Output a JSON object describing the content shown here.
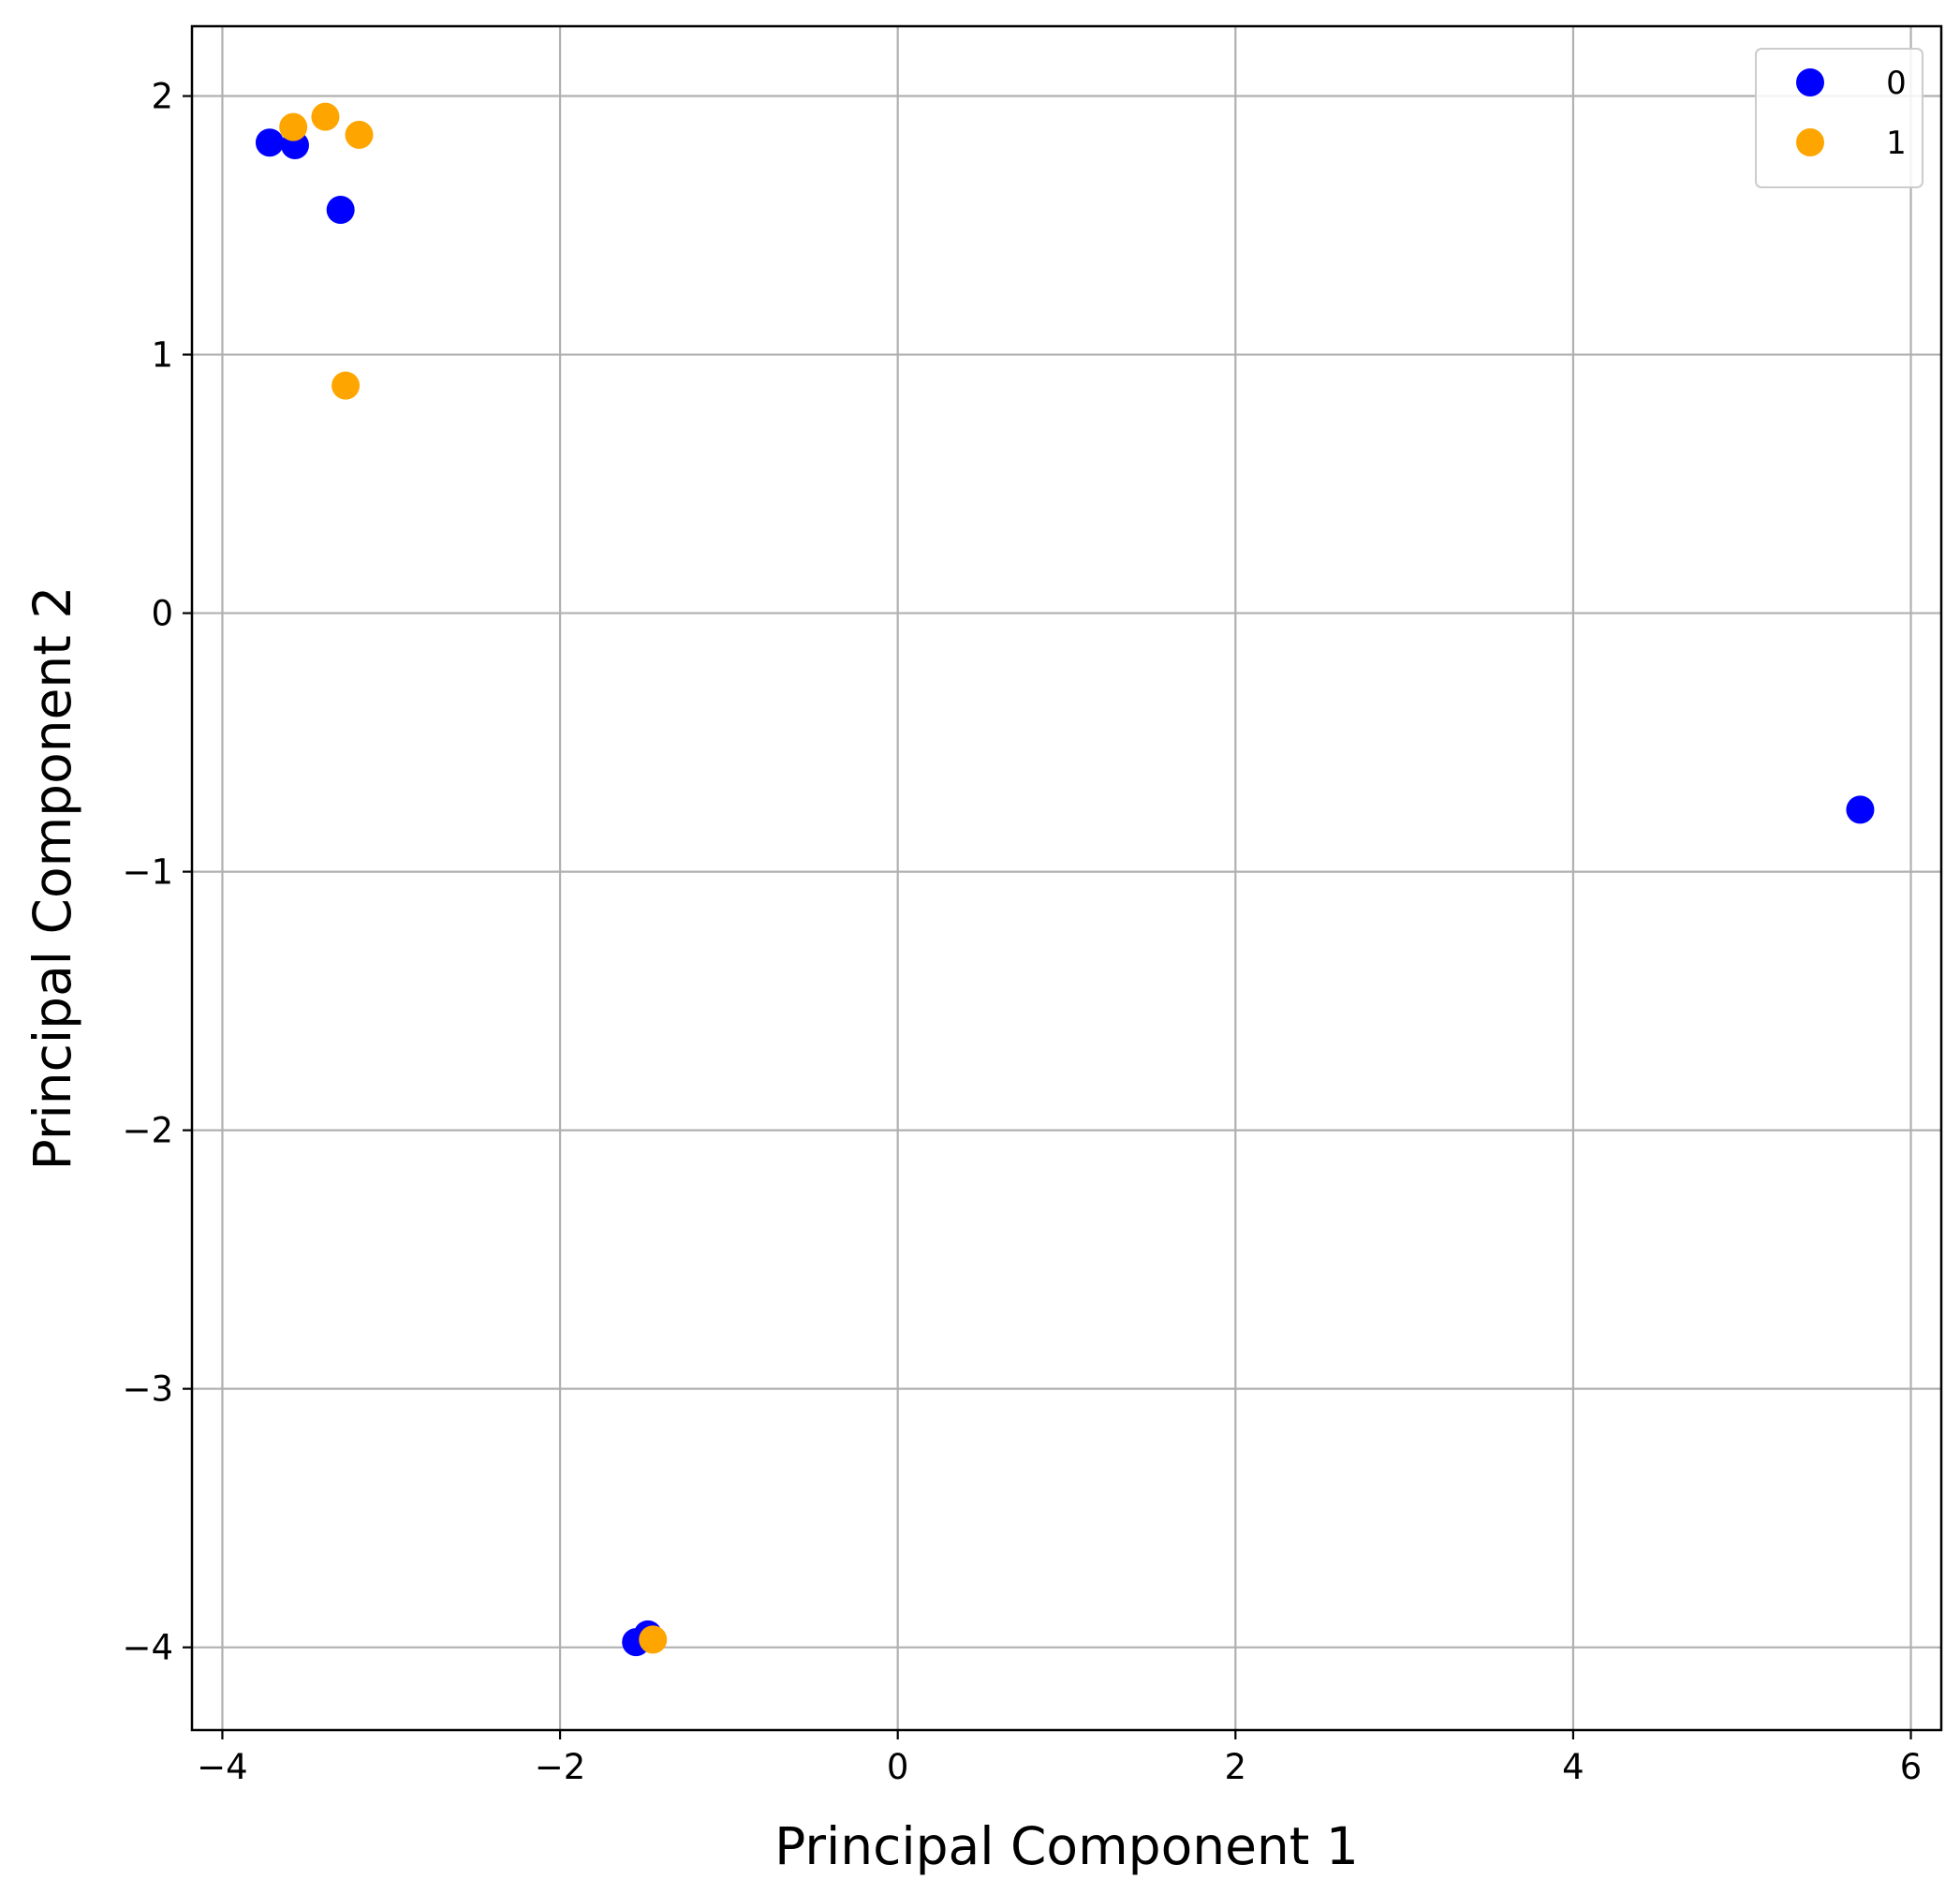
{
  "chart_data": {
    "type": "scatter",
    "title": "",
    "xlabel": "Principal Component 1",
    "ylabel": "Principal Component 2",
    "xlim": [
      -4.18,
      6.18
    ],
    "ylim": [
      -4.32,
      2.27
    ],
    "xticks": [
      -4,
      -2,
      0,
      2,
      4,
      6
    ],
    "yticks": [
      -4,
      -3,
      -2,
      -1,
      0,
      1,
      2
    ],
    "grid": true,
    "legend_position": "top-right",
    "series": [
      {
        "name": "0",
        "color": "#0000ff",
        "points": [
          {
            "x": -3.72,
            "y": 1.82
          },
          {
            "x": -3.57,
            "y": 1.81
          },
          {
            "x": -3.3,
            "y": 1.56
          },
          {
            "x": -1.55,
            "y": -3.98
          },
          {
            "x": -1.48,
            "y": -3.95
          },
          {
            "x": 5.7,
            "y": -0.76
          }
        ]
      },
      {
        "name": "1",
        "color": "#ffa500",
        "points": [
          {
            "x": -3.58,
            "y": 1.88
          },
          {
            "x": -3.39,
            "y": 1.92
          },
          {
            "x": -3.19,
            "y": 1.85
          },
          {
            "x": -3.27,
            "y": 0.88
          },
          {
            "x": -1.45,
            "y": -3.97
          }
        ]
      }
    ]
  }
}
